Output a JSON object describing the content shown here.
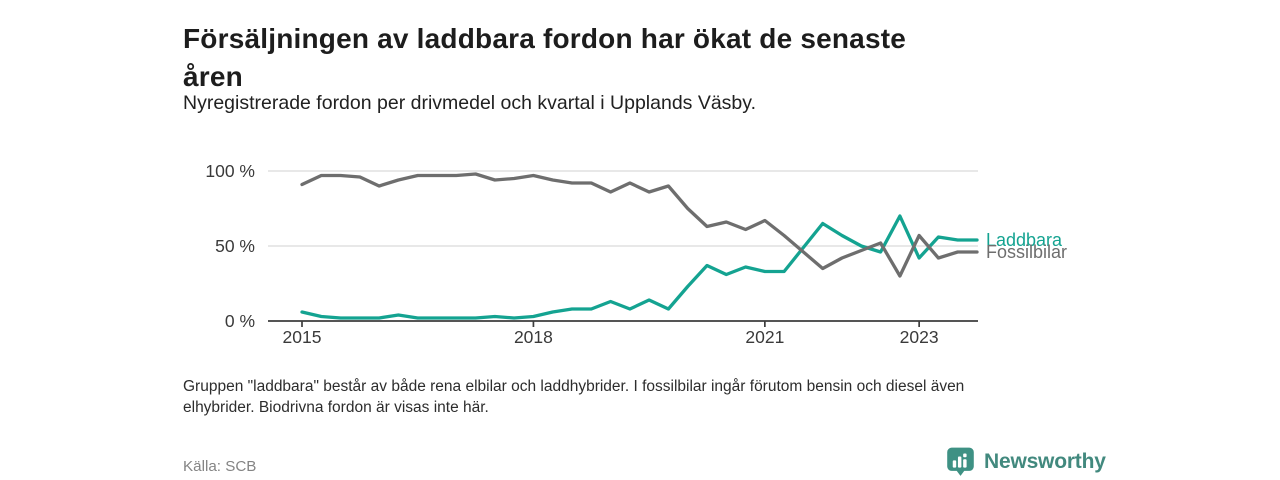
{
  "page": {
    "title": "Försäljningen av laddbara fordon har ökat de senaste\nåren",
    "subtitle": "Nyregistrerade fordon per drivmedel och kvartal i Upplands Väsby.",
    "footnote": "Gruppen \"laddbara\" består av både rena elbilar och laddhybrider. I fossilbilar ingår förutom bensin och diesel även\nelhybrider. Biodrivna fordon är visas inte här.",
    "source": "Källa: SCB",
    "brand": "Newsworthy",
    "brand_icon": "bar-chart-speech-bubble-icon"
  },
  "colors": {
    "accent_teal": "#14a391",
    "series_gray": "#6e6e6e",
    "logo_teal": "#3e9184",
    "logo_text": "#42897e",
    "axis": "#3d3d3d",
    "gridline": "#dbdbdb",
    "tick_text": "#3a3a3a",
    "background": "#ffffff"
  },
  "chart_data": {
    "type": "line",
    "title": "Försäljningen av laddbara fordon har ökat de senaste åren",
    "subtitle": "Nyregistrerade fordon per drivmedel och kvartal i Upplands Väsby.",
    "unit": "%",
    "grid": "horizontal",
    "legend": "line-end-labels",
    "ylim": [
      0,
      100
    ],
    "categories": [
      "2015 Q1",
      "2015 Q2",
      "2015 Q3",
      "2015 Q4",
      "2016 Q1",
      "2016 Q2",
      "2016 Q3",
      "2016 Q4",
      "2017 Q1",
      "2017 Q2",
      "2017 Q3",
      "2017 Q4",
      "2018 Q1",
      "2018 Q2",
      "2018 Q3",
      "2018 Q4",
      "2019 Q1",
      "2019 Q2",
      "2019 Q3",
      "2019 Q4",
      "2020 Q1",
      "2020 Q2",
      "2020 Q3",
      "2020 Q4",
      "2021 Q1",
      "2021 Q2",
      "2021 Q3",
      "2021 Q4",
      "2022 Q1",
      "2022 Q2",
      "2022 Q3",
      "2022 Q4",
      "2023 Q1",
      "2023 Q2",
      "2023 Q3",
      "2023 Q4"
    ],
    "series": [
      {
        "name": "Laddbara",
        "color": "#14a391",
        "values": [
          6,
          3,
          2,
          2,
          2,
          4,
          2,
          2,
          2,
          2,
          3,
          2,
          3,
          6,
          8,
          8,
          13,
          8,
          14,
          8,
          23,
          37,
          31,
          36,
          33,
          33,
          49,
          65,
          57,
          50,
          46,
          70,
          42,
          56,
          54,
          54
        ]
      },
      {
        "name": "Fossilbilar",
        "color": "#6e6e6e",
        "values": [
          91,
          97,
          97,
          96,
          90,
          94,
          97,
          97,
          97,
          98,
          94,
          95,
          97,
          94,
          92,
          92,
          86,
          92,
          86,
          90,
          75,
          63,
          66,
          61,
          67,
          57,
          46,
          35,
          42,
          47,
          52,
          30,
          57,
          42,
          46,
          46
        ]
      }
    ],
    "y_ticks": [
      {
        "value": 100,
        "label": "100 %"
      },
      {
        "value": 50,
        "label": "50 %"
      },
      {
        "value": 0,
        "label": "0 %"
      }
    ],
    "x_ticks": [
      {
        "index": 0,
        "label": "2015"
      },
      {
        "index": 12,
        "label": "2018"
      },
      {
        "index": 24,
        "label": "2021"
      },
      {
        "index": 32,
        "label": "2023"
      }
    ]
  }
}
